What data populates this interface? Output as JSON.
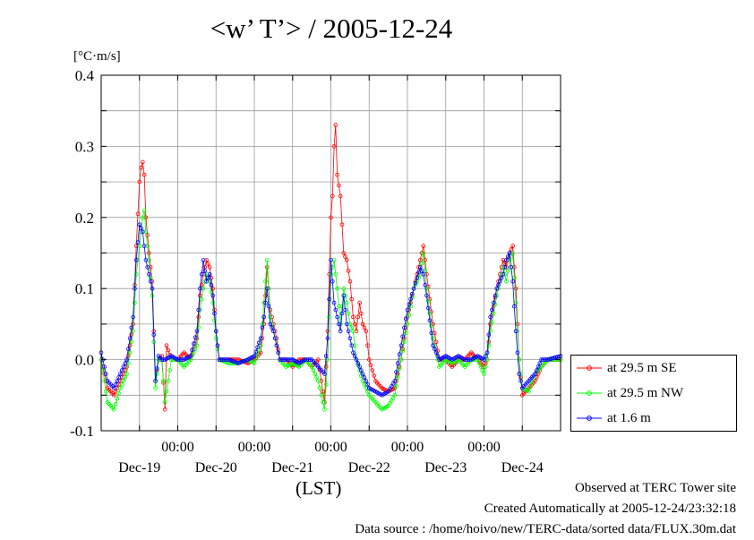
{
  "chart_data": {
    "type": "line",
    "title": "<w’ T’> / 2005-12-24",
    "ylabel": "[°C·m/s]",
    "xlabel": "(LST)",
    "ylim": [
      -0.1,
      0.4
    ],
    "yticks": [
      "-0.1",
      "0.0",
      "0.1",
      "0.2",
      "0.3",
      "0.4"
    ],
    "xlim_hours": [
      0,
      144
    ],
    "x_hour_labels": [
      "00:00",
      "00:00",
      "00:00",
      "00:00",
      "00:00"
    ],
    "x_date_labels": [
      "Dec-19",
      "Dec-20",
      "Dec-21",
      "Dec-22",
      "Dec-23",
      "Dec-24"
    ],
    "grid": true,
    "legend_position": "outside-right",
    "series": [
      {
        "name": "at 29.5 m SE",
        "color": "#ff0000",
        "points": [
          [
            0,
            0.0
          ],
          [
            2,
            -0.04
          ],
          [
            4,
            -0.05
          ],
          [
            6,
            -0.03
          ],
          [
            8,
            -0.01
          ],
          [
            10,
            0.05
          ],
          [
            11,
            0.16
          ],
          [
            12,
            0.25
          ],
          [
            12.5,
            0.27
          ],
          [
            13,
            0.278
          ],
          [
            13.5,
            0.26
          ],
          [
            14,
            0.2
          ],
          [
            15,
            0.15
          ],
          [
            16,
            0.11
          ],
          [
            17,
            -0.03
          ],
          [
            18,
            0.0
          ],
          [
            19,
            0.005
          ],
          [
            20,
            -0.07
          ],
          [
            20.5,
            0.02
          ],
          [
            22,
            0.0
          ],
          [
            24,
            0.0
          ],
          [
            26,
            0.01
          ],
          [
            28,
            0.0
          ],
          [
            30,
            0.03
          ],
          [
            31,
            0.09
          ],
          [
            32,
            0.12
          ],
          [
            33,
            0.14
          ],
          [
            34,
            0.13
          ],
          [
            35,
            0.1
          ],
          [
            36,
            0.04
          ],
          [
            37,
            0.0
          ],
          [
            40,
            0.0
          ],
          [
            43,
            0.0
          ],
          [
            46,
            -0.005
          ],
          [
            48,
            0.0
          ],
          [
            50,
            0.01
          ],
          [
            51,
            0.05
          ],
          [
            52,
            0.13
          ],
          [
            53,
            0.07
          ],
          [
            54,
            0.05
          ],
          [
            55,
            0.03
          ],
          [
            56,
            0.0
          ],
          [
            58,
            0.0
          ],
          [
            60,
            -0.01
          ],
          [
            62,
            0.0
          ],
          [
            64,
            0.0
          ],
          [
            66,
            -0.01
          ],
          [
            68,
            0.0
          ],
          [
            70,
            -0.06
          ],
          [
            71,
            0.04
          ],
          [
            72,
            0.2
          ],
          [
            72.5,
            0.23
          ],
          [
            73,
            0.3
          ],
          [
            73.5,
            0.33
          ],
          [
            74,
            0.26
          ],
          [
            75,
            0.23
          ],
          [
            76,
            0.15
          ],
          [
            77,
            0.14
          ],
          [
            78,
            0.11
          ],
          [
            79,
            0.06
          ],
          [
            80,
            0.04
          ],
          [
            81,
            0.08
          ],
          [
            82,
            0.05
          ],
          [
            83,
            0.04
          ],
          [
            84,
            0.0
          ],
          [
            86,
            -0.03
          ],
          [
            88,
            -0.04
          ],
          [
            90,
            -0.045
          ],
          [
            92,
            -0.04
          ],
          [
            94,
            0.0
          ],
          [
            96,
            0.06
          ],
          [
            98,
            0.1
          ],
          [
            100,
            0.14
          ],
          [
            101,
            0.16
          ],
          [
            102,
            0.12
          ],
          [
            104,
            0.05
          ],
          [
            106,
            0.0
          ],
          [
            108,
            0.0
          ],
          [
            110,
            -0.01
          ],
          [
            112,
            0.0
          ],
          [
            114,
            0.0
          ],
          [
            116,
            0.01
          ],
          [
            118,
            0.0
          ],
          [
            120,
            -0.01
          ],
          [
            121,
            0.0
          ],
          [
            122,
            0.05
          ],
          [
            124,
            0.1
          ],
          [
            126,
            0.14
          ],
          [
            127,
            0.13
          ],
          [
            128,
            0.15
          ],
          [
            129,
            0.16
          ],
          [
            130,
            0.1
          ],
          [
            131,
            0.0
          ],
          [
            132,
            -0.05
          ],
          [
            134,
            -0.04
          ],
          [
            136,
            -0.03
          ],
          [
            138,
            -0.01
          ],
          [
            140,
            0.0
          ],
          [
            144,
            0.0
          ]
        ]
      },
      {
        "name": "at 29.5 m NW",
        "color": "#00ff00",
        "points": [
          [
            0,
            0.0
          ],
          [
            2,
            -0.06
          ],
          [
            4,
            -0.07
          ],
          [
            6,
            -0.04
          ],
          [
            8,
            -0.02
          ],
          [
            10,
            0.04
          ],
          [
            11,
            0.12
          ],
          [
            12,
            0.16
          ],
          [
            13,
            0.2
          ],
          [
            13.5,
            0.21
          ],
          [
            14,
            0.18
          ],
          [
            15,
            0.14
          ],
          [
            16,
            0.09
          ],
          [
            17,
            -0.04
          ],
          [
            18,
            0.0
          ],
          [
            19,
            0.0
          ],
          [
            20,
            -0.06
          ],
          [
            22,
            0.0
          ],
          [
            24,
            0.0
          ],
          [
            26,
            -0.01
          ],
          [
            28,
            0.0
          ],
          [
            30,
            0.02
          ],
          [
            31,
            0.07
          ],
          [
            32,
            0.1
          ],
          [
            33,
            0.12
          ],
          [
            34,
            0.11
          ],
          [
            35,
            0.08
          ],
          [
            36,
            0.03
          ],
          [
            37,
            0.0
          ],
          [
            40,
            -0.005
          ],
          [
            43,
            -0.005
          ],
          [
            46,
            0.0
          ],
          [
            48,
            -0.005
          ],
          [
            50,
            0.02
          ],
          [
            51,
            0.08
          ],
          [
            52,
            0.14
          ],
          [
            53,
            0.06
          ],
          [
            54,
            0.04
          ],
          [
            55,
            0.02
          ],
          [
            56,
            0.0
          ],
          [
            58,
            -0.01
          ],
          [
            60,
            -0.005
          ],
          [
            62,
            -0.01
          ],
          [
            64,
            0.0
          ],
          [
            66,
            -0.01
          ],
          [
            68,
            -0.03
          ],
          [
            70,
            -0.07
          ],
          [
            71,
            0.0
          ],
          [
            72,
            0.12
          ],
          [
            73,
            0.14
          ],
          [
            74,
            0.1
          ],
          [
            75,
            0.05
          ],
          [
            76,
            0.1
          ],
          [
            77,
            0.08
          ],
          [
            78,
            0.05
          ],
          [
            79,
            0.04
          ],
          [
            80,
            0.0
          ],
          [
            82,
            -0.03
          ],
          [
            84,
            -0.05
          ],
          [
            86,
            -0.06
          ],
          [
            88,
            -0.07
          ],
          [
            90,
            -0.065
          ],
          [
            92,
            -0.05
          ],
          [
            94,
            0.0
          ],
          [
            96,
            0.05
          ],
          [
            98,
            0.1
          ],
          [
            100,
            0.12
          ],
          [
            101,
            0.15
          ],
          [
            102,
            0.1
          ],
          [
            104,
            0.03
          ],
          [
            106,
            -0.01
          ],
          [
            108,
            0.0
          ],
          [
            110,
            -0.005
          ],
          [
            112,
            0.0
          ],
          [
            114,
            -0.01
          ],
          [
            116,
            0.0
          ],
          [
            118,
            0.0
          ],
          [
            120,
            -0.02
          ],
          [
            121,
            0.0
          ],
          [
            122,
            0.04
          ],
          [
            124,
            0.09
          ],
          [
            126,
            0.13
          ],
          [
            127,
            0.11
          ],
          [
            128,
            0.14
          ],
          [
            129,
            0.15
          ],
          [
            130,
            0.08
          ],
          [
            131,
            0.0
          ],
          [
            132,
            -0.04
          ],
          [
            134,
            -0.045
          ],
          [
            136,
            -0.02
          ],
          [
            138,
            -0.01
          ],
          [
            140,
            0.0
          ],
          [
            144,
            0.0
          ]
        ]
      },
      {
        "name": "at 1.6 m",
        "color": "#0000ff",
        "points": [
          [
            0,
            0.01
          ],
          [
            2,
            -0.03
          ],
          [
            4,
            -0.04
          ],
          [
            6,
            -0.02
          ],
          [
            8,
            0.0
          ],
          [
            10,
            0.06
          ],
          [
            11,
            0.14
          ],
          [
            12,
            0.19
          ],
          [
            13,
            0.18
          ],
          [
            13.5,
            0.16
          ],
          [
            14,
            0.14
          ],
          [
            15,
            0.12
          ],
          [
            16,
            0.1
          ],
          [
            17,
            -0.03
          ],
          [
            18,
            0.005
          ],
          [
            19,
            0.0
          ],
          [
            20,
            0.0
          ],
          [
            22,
            0.005
          ],
          [
            24,
            0.0
          ],
          [
            26,
            0.0
          ],
          [
            28,
            0.005
          ],
          [
            30,
            0.04
          ],
          [
            31,
            0.1
          ],
          [
            32,
            0.14
          ],
          [
            33,
            0.11
          ],
          [
            34,
            0.12
          ],
          [
            35,
            0.09
          ],
          [
            36,
            0.04
          ],
          [
            37,
            0.0
          ],
          [
            40,
            0.0
          ],
          [
            43,
            -0.005
          ],
          [
            46,
            0.0
          ],
          [
            48,
            0.005
          ],
          [
            50,
            0.03
          ],
          [
            51,
            0.06
          ],
          [
            52,
            0.1
          ],
          [
            53,
            0.05
          ],
          [
            54,
            0.04
          ],
          [
            55,
            0.02
          ],
          [
            56,
            0.0
          ],
          [
            58,
            0.0
          ],
          [
            60,
            0.0
          ],
          [
            62,
            -0.005
          ],
          [
            64,
            0.0
          ],
          [
            66,
            0.0
          ],
          [
            68,
            -0.01
          ],
          [
            70,
            -0.02
          ],
          [
            71,
            0.03
          ],
          [
            72,
            0.14
          ],
          [
            73,
            0.08
          ],
          [
            74,
            0.06
          ],
          [
            75,
            0.04
          ],
          [
            76,
            0.09
          ],
          [
            77,
            0.05
          ],
          [
            78,
            0.03
          ],
          [
            79,
            0.01
          ],
          [
            80,
            0.0
          ],
          [
            82,
            -0.02
          ],
          [
            84,
            -0.04
          ],
          [
            86,
            -0.045
          ],
          [
            88,
            -0.05
          ],
          [
            90,
            -0.045
          ],
          [
            92,
            -0.03
          ],
          [
            94,
            0.02
          ],
          [
            96,
            0.07
          ],
          [
            98,
            0.1
          ],
          [
            100,
            0.13
          ],
          [
            101,
            0.12
          ],
          [
            102,
            0.09
          ],
          [
            104,
            0.02
          ],
          [
            106,
            0.0
          ],
          [
            108,
            0.005
          ],
          [
            110,
            0.0
          ],
          [
            112,
            0.005
          ],
          [
            114,
            0.0
          ],
          [
            116,
            0.0
          ],
          [
            118,
            0.005
          ],
          [
            120,
            0.0
          ],
          [
            121,
            0.01
          ],
          [
            122,
            0.06
          ],
          [
            124,
            0.1
          ],
          [
            126,
            0.12
          ],
          [
            127,
            0.14
          ],
          [
            128,
            0.15
          ],
          [
            129,
            0.11
          ],
          [
            130,
            0.04
          ],
          [
            131,
            -0.02
          ],
          [
            132,
            -0.04
          ],
          [
            134,
            -0.03
          ],
          [
            136,
            -0.02
          ],
          [
            138,
            0.0
          ],
          [
            140,
            0.0
          ],
          [
            144,
            0.005
          ]
        ]
      }
    ]
  },
  "footer": {
    "line1": "Observed at TERC Tower site",
    "line2": "Created Automatically at 2005-12-24/23:32:18",
    "line3": "Data source : /home/hoivo/new/TERC-data/sorted  data/FLUX.30m.dat"
  }
}
